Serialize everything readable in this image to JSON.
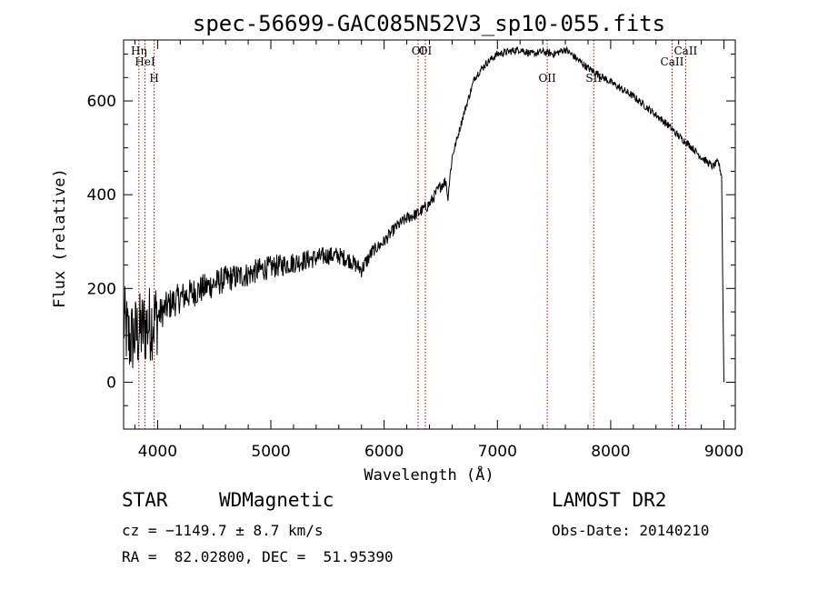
{
  "chart_data": {
    "type": "line",
    "title": "spec-56699-GAC085N52V3_sp10-055.fits",
    "xlabel": "Wavelength (Å)",
    "ylabel": "Flux (relative)",
    "xlim": [
      3700,
      9100
    ],
    "ylim": [
      -100,
      730
    ],
    "x_ticks": [
      4000,
      5000,
      6000,
      7000,
      8000,
      9000
    ],
    "y_ticks": [
      0,
      200,
      400,
      600
    ],
    "grid": false,
    "legend": "none",
    "line_color": "#000000",
    "marker_color": "#aa0000",
    "series": [
      {
        "x": [
          3700,
          3750,
          3800,
          3850,
          3900,
          3950,
          4000,
          4100,
          4200,
          4300,
          4400,
          4500,
          4600,
          4700,
          4800,
          4900,
          5000,
          5100,
          5200,
          5300,
          5400,
          5500,
          5600,
          5700,
          5800,
          5900,
          6000,
          6100,
          6200,
          6300,
          6400,
          6500,
          6550,
          6560,
          6600,
          6700,
          6800,
          6900,
          7000,
          7100,
          7200,
          7300,
          7400,
          7500,
          7600,
          7700,
          7800,
          7900,
          8000,
          8100,
          8200,
          8300,
          8400,
          8500,
          8600,
          8700,
          8800,
          8900,
          8950,
          8980,
          8990,
          9000
        ],
        "y": [
          130,
          90,
          100,
          110,
          120,
          130,
          140,
          165,
          180,
          190,
          200,
          210,
          220,
          225,
          230,
          240,
          245,
          250,
          255,
          260,
          265,
          270,
          270,
          260,
          240,
          280,
          300,
          330,
          350,
          360,
          380,
          420,
          430,
          390,
          480,
          570,
          650,
          680,
          700,
          705,
          710,
          700,
          705,
          700,
          710,
          690,
          670,
          655,
          640,
          625,
          610,
          590,
          570,
          550,
          525,
          505,
          480,
          460,
          470,
          440,
          200,
          0
        ]
      }
    ],
    "spectral_lines": [
      {
        "label": "Hη",
        "x": 3835
      },
      {
        "label": "HeI",
        "x": 3889
      },
      {
        "label": "H",
        "x": 3970
      },
      {
        "label": "OI",
        "x": 6300
      },
      {
        "label": "OI",
        "x": 6364
      },
      {
        "label": "OII",
        "x": 7440
      },
      {
        "label": "SII",
        "x": 7850
      },
      {
        "label": "CaII",
        "x": 8542
      },
      {
        "label": "CaII",
        "x": 8662
      }
    ]
  },
  "footer": {
    "object_class": "STAR",
    "subclass": "WDMagnetic",
    "survey": "LAMOST DR2",
    "redshift": "cz = −1149.7 ± 8.7 km/s",
    "obs_date": "Obs-Date: 20140210",
    "coords": "RA =  82.02800, DEC =  51.95390"
  }
}
